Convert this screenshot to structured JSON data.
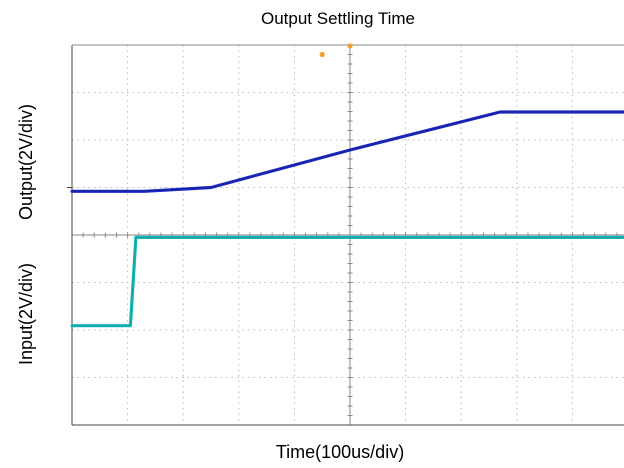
{
  "chart_data": {
    "type": "line",
    "title": "Output Settling Time",
    "xlabel": "Time(100us/div)",
    "ylabels": [
      "Output(2V/div)",
      "Input(2V/div)"
    ],
    "x_divisions": 10,
    "y_divisions": 8,
    "x_range_div": [
      0,
      10
    ],
    "y_range_div": [
      0,
      8
    ],
    "grid": true,
    "grid_style": "dotted",
    "series": [
      {
        "color": "#1f2dbf",
        "x": [
          0.0,
          1.3,
          2.5,
          5.0,
          7.7,
          8.1,
          10.0
        ],
        "y": [
          4.92,
          4.92,
          5.0,
          5.79,
          6.59,
          6.59,
          6.59
        ]
      },
      {
        "color": "#17b8b8",
        "x": [
          0.0,
          1.05,
          1.05,
          1.15,
          10.0
        ],
        "y": [
          2.09,
          2.09,
          2.09,
          3.95,
          3.95
        ]
      }
    ],
    "markers": [
      {
        "color": "#f0a030",
        "x": 4.5,
        "y": 7.8
      },
      {
        "color": "#f0a030",
        "x": 5.0,
        "y": 7.98
      },
      {
        "color": "#1f2dbf",
        "x": 10.0,
        "y": 5.83
      }
    ]
  }
}
